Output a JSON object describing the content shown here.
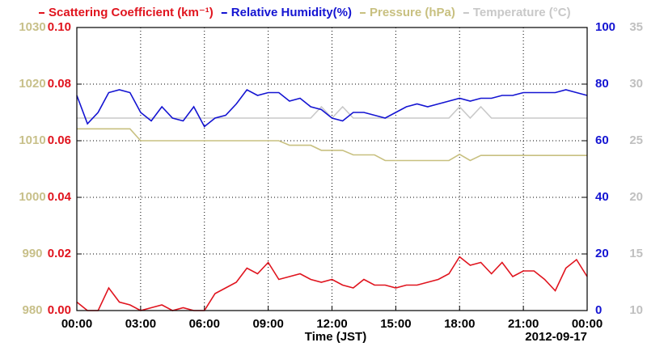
{
  "chart_data": {
    "type": "line",
    "x_label": "Time (JST)",
    "date_label": "2012-09-17",
    "x": [
      0,
      0.5,
      1,
      1.5,
      2,
      2.5,
      3,
      3.5,
      4,
      4.5,
      5,
      5.5,
      6,
      6.5,
      7,
      7.5,
      8,
      8.5,
      9,
      9.5,
      10,
      10.5,
      11,
      11.5,
      12,
      12.5,
      13,
      13.5,
      14,
      14.5,
      15,
      15.5,
      16,
      16.5,
      17,
      17.5,
      18,
      18.5,
      19,
      19.5,
      20,
      20.5,
      21,
      21.5,
      22,
      22.5,
      23,
      23.5,
      24
    ],
    "xlim": [
      0,
      24
    ],
    "xticks": [
      {
        "value": 0,
        "label": "00:00"
      },
      {
        "value": 3,
        "label": "03:00"
      },
      {
        "value": 6,
        "label": "06:00"
      },
      {
        "value": 9,
        "label": "09:00"
      },
      {
        "value": 12,
        "label": "12:00"
      },
      {
        "value": 15,
        "label": "15:00"
      },
      {
        "value": 18,
        "label": "18:00"
      },
      {
        "value": 21,
        "label": "21:00"
      },
      {
        "value": 24,
        "label": "00:00"
      }
    ],
    "ylim": [
      0,
      0.1
    ],
    "yticks": [
      {
        "value": 0,
        "label": "0.00"
      },
      {
        "value": 0.02,
        "label": "0.02"
      },
      {
        "value": 0.04,
        "label": "0.04"
      },
      {
        "value": 0.06,
        "label": "0.06"
      },
      {
        "value": 0.08,
        "label": "0.08"
      },
      {
        "value": 0.1,
        "label": "0.10"
      }
    ],
    "y2lim": [
      0,
      100
    ],
    "y2ticks": [
      0,
      20,
      40,
      60,
      80,
      100
    ],
    "y3lim": [
      980,
      1030
    ],
    "y3ticks": [
      980,
      990,
      1000,
      1010,
      1020,
      1030
    ],
    "y4lim": [
      10,
      35
    ],
    "y4ticks": [
      10,
      15,
      20,
      25,
      30,
      35
    ],
    "grid": true,
    "series": [
      {
        "name": "Scattering Coefficient (km⁻¹)",
        "color": "#e0141e",
        "axis": "y",
        "values": [
          0.003,
          0,
          0,
          0.008,
          0.003,
          0.002,
          0,
          0.001,
          0.002,
          0,
          0.001,
          0,
          0,
          0.006,
          0.008,
          0.01,
          0.015,
          0.013,
          0.017,
          0.011,
          0.012,
          0.013,
          0.011,
          0.01,
          0.011,
          0.009,
          0.008,
          0.011,
          0.009,
          0.009,
          0.008,
          0.009,
          0.009,
          0.01,
          0.011,
          0.013,
          0.019,
          0.016,
          0.017,
          0.013,
          0.017,
          0.012,
          0.014,
          0.014,
          0.011,
          0.007,
          0.015,
          0.018,
          0.012
        ]
      },
      {
        "name": "Relative Humidity(%)",
        "color": "#1414d2",
        "axis": "y2",
        "values": [
          76,
          66,
          70,
          77,
          78,
          77,
          70,
          67,
          72,
          68,
          67,
          72,
          65,
          68,
          69,
          73,
          78,
          76,
          77,
          77,
          74,
          75,
          72,
          71,
          68,
          67,
          70,
          70,
          69,
          68,
          70,
          72,
          73,
          72,
          73,
          74,
          75,
          74,
          75,
          75,
          76,
          76,
          77,
          77,
          77,
          77,
          78,
          77,
          76
        ]
      },
      {
        "name": "Pressure (hPa)",
        "color": "#c8c080",
        "axis": "y3",
        "values": [
          1012.1,
          1012.1,
          1012.1,
          1012.1,
          1012.1,
          1012.1,
          1010,
          1010,
          1010,
          1010,
          1010,
          1010,
          1010,
          1010,
          1010,
          1010,
          1010,
          1010,
          1010,
          1010,
          1009.2,
          1009.2,
          1009.2,
          1008.3,
          1008.3,
          1008.3,
          1007.5,
          1007.5,
          1007.5,
          1006.5,
          1006.5,
          1006.5,
          1006.5,
          1006.5,
          1006.5,
          1006.5,
          1007.6,
          1006.5,
          1007.4,
          1007.4,
          1007.4,
          1007.4,
          1007.4,
          1007.4,
          1007.4,
          1007.4,
          1007.4,
          1007.4,
          1007.4
        ]
      },
      {
        "name": "Temperature (°C)",
        "color": "#c8c8c8",
        "axis": "y4",
        "values": [
          27,
          27,
          27,
          27,
          27,
          27,
          27,
          27,
          27,
          27,
          27,
          27,
          27,
          27,
          27,
          27,
          27,
          27,
          27,
          27,
          27,
          27,
          27,
          28,
          27,
          28,
          27,
          27,
          27,
          27,
          27,
          27,
          27,
          27,
          27,
          27,
          28,
          27,
          28,
          27,
          27,
          27,
          27,
          27,
          27,
          27,
          27,
          27,
          27
        ]
      }
    ]
  }
}
